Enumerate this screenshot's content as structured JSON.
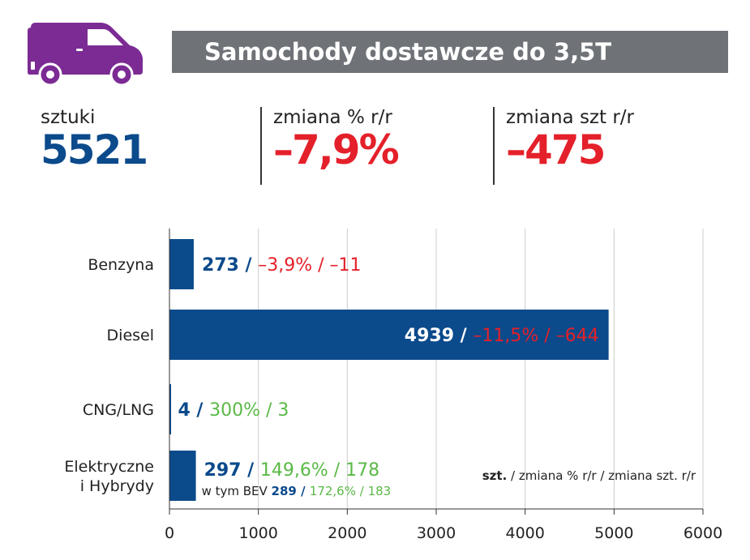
{
  "header": {
    "title": "Samochody dostawcze do 3,5T",
    "icon": "van-icon",
    "icon_color": "#7b2b93"
  },
  "kpis": [
    {
      "label": "sztuki",
      "value": "5521",
      "color": "#0b4a8b"
    },
    {
      "label": "zmiana % r/r",
      "value": "–7,9%",
      "color": "#e4202a"
    },
    {
      "label": "zmiana szt r/r",
      "value": "–475",
      "color": "#e4202a"
    }
  ],
  "colors": {
    "bar": "#0b4a8b",
    "negative": "#e4202a",
    "positive": "#5ab947",
    "text": "#222222",
    "grid": "#cccccc"
  },
  "chart_data": {
    "type": "bar",
    "orientation": "horizontal",
    "categories": [
      "Benzyna",
      "Diesel",
      "CNG/LNG",
      "Elektryczne i Hybrydy"
    ],
    "category_lines": [
      [
        "Benzyna"
      ],
      [
        "Diesel"
      ],
      [
        "CNG/LNG"
      ],
      [
        "Elektryczne",
        "i Hybrydy"
      ]
    ],
    "values": [
      273,
      4939,
      4,
      297
    ],
    "change_pct": [
      "–3,9%",
      "–11,5%",
      "300%",
      "149,6%"
    ],
    "change_units": [
      "–11",
      "–644",
      "3",
      "178"
    ],
    "change_sign": [
      "negative",
      "negative",
      "positive",
      "positive"
    ],
    "value_labels": [
      "273",
      "4939",
      "4",
      "297"
    ],
    "sub_label": {
      "prefix": "w tym BEV",
      "value": "289",
      "change_pct": "172,6%",
      "change_units": "183"
    },
    "xlim": [
      0,
      6000
    ],
    "xticks": [
      0,
      1000,
      2000,
      3000,
      4000,
      5000,
      6000
    ],
    "grid": true,
    "legend": {
      "bold": "szt.",
      "rest": " / zmiana % r/r / zmiana szt. r/r",
      "position": "bottom-right"
    }
  }
}
